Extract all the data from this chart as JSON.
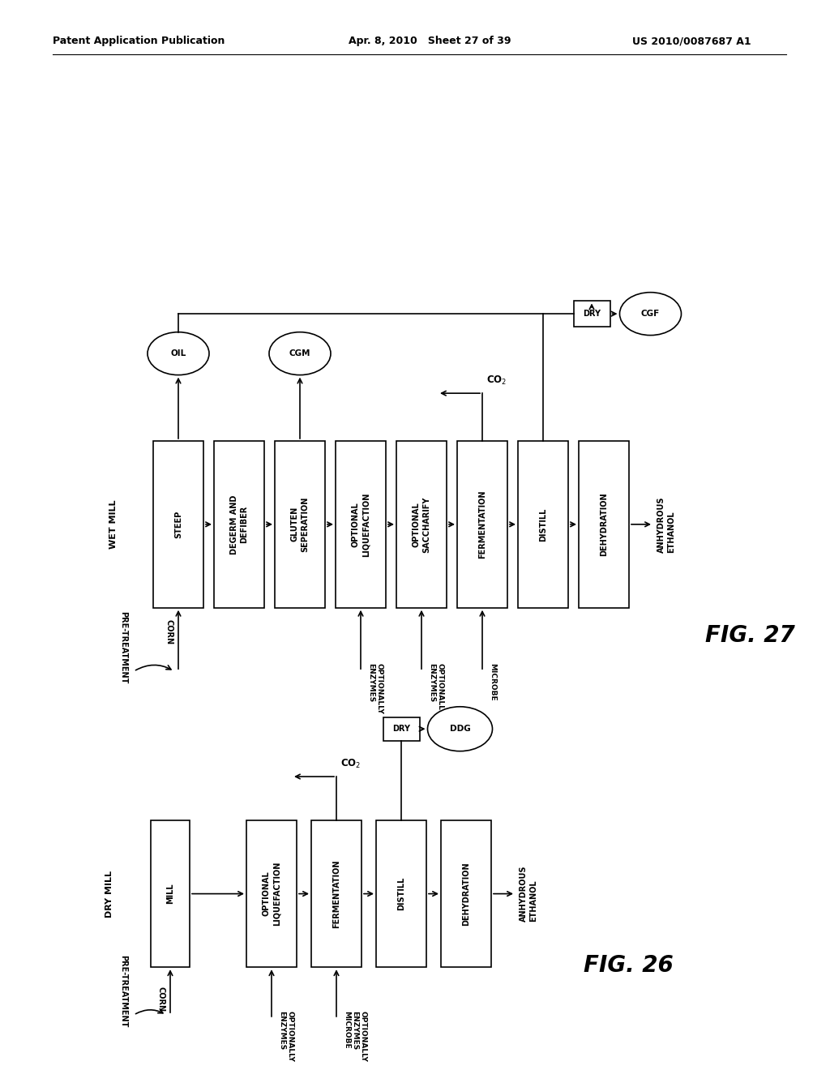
{
  "header_left": "Patent Application Publication",
  "header_mid": "Apr. 8, 2010   Sheet 27 of 39",
  "header_right": "US 2010/0087687 A1",
  "bg_color": "#ffffff",
  "box_color": "#ffffff",
  "box_edge": "#000000",
  "text_color": "#000000"
}
